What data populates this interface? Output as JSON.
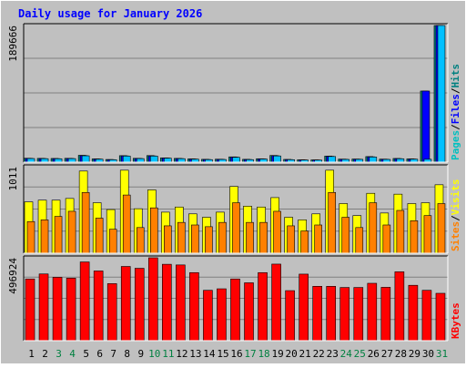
{
  "chart_data": {
    "type": "bar",
    "title": "Daily usage for January 2026",
    "categories": [
      "1",
      "2",
      "3",
      "4",
      "5",
      "6",
      "7",
      "8",
      "9",
      "10",
      "11",
      "12",
      "13",
      "14",
      "15",
      "16",
      "17",
      "18",
      "19",
      "20",
      "21",
      "22",
      "23",
      "24",
      "25",
      "26",
      "27",
      "28",
      "29",
      "30",
      "31"
    ],
    "weekend_days": [
      "3",
      "4",
      "10",
      "11",
      "17",
      "18",
      "24",
      "25",
      "31"
    ],
    "panels": [
      {
        "id": "top",
        "ylabel_max": "189666",
        "ymax": 189666,
        "side_labels": [
          {
            "text": "Pages",
            "color": "#00c0c0"
          },
          {
            "text": "/",
            "color": "#000000"
          },
          {
            "text": "Files",
            "color": "#0000ff"
          },
          {
            "text": "/",
            "color": "#000000"
          },
          {
            "text": "Hits",
            "color": "#008080"
          }
        ],
        "series": [
          {
            "name": "Hits",
            "color": "#008080",
            "values": [
              5400,
              5200,
              5100,
              5300,
              9500,
              4500,
              3700,
              9000,
              5300,
              9100,
              5900,
              5200,
              4500,
              3900,
              4100,
              7300,
              3900,
              4700,
              9300,
              3800,
              3200,
              3100,
              8400,
              4200,
              4300,
              7700,
              4200,
              5100,
              4500,
              98700,
              189666
            ]
          },
          {
            "name": "Files",
            "color": "#0000ff",
            "values": [
              5200,
              5000,
              4900,
              5100,
              9100,
              4300,
              3500,
              8700,
              5100,
              8700,
              5700,
              5000,
              4300,
              3700,
              3900,
              7000,
              3700,
              4500,
              8900,
              3600,
              3100,
              3000,
              8100,
              4000,
              4100,
              7400,
              4000,
              4900,
              4300,
              98700,
              189666
            ]
          },
          {
            "name": "Pages",
            "color": "#00c0ff",
            "values": [
              5000,
              4800,
              4700,
              4900,
              8800,
              4100,
              3300,
              8400,
              4900,
              8400,
              5500,
              4800,
              4100,
              3500,
              3700,
              6700,
              3500,
              4300,
              8600,
              3400,
              2900,
              2800,
              7800,
              3800,
              3900,
              7100,
              3800,
              4700,
              4100,
              4000,
              189666
            ]
          }
        ]
      },
      {
        "id": "middle",
        "ylabel_max": "1011",
        "ymax": 1011,
        "side_labels": [
          {
            "text": "Sites",
            "color": "#ff8000"
          },
          {
            "text": "/",
            "color": "#000000"
          },
          {
            "text": "Visits",
            "color": "#ffff00"
          }
        ],
        "series": [
          {
            "name": "Visits",
            "color": "#ffff00",
            "values": [
              600,
              620,
              620,
              640,
              960,
              590,
              510,
              970,
              520,
              740,
              480,
              540,
              460,
              420,
              480,
              780,
              550,
              540,
              650,
              420,
              390,
              460,
              970,
              580,
              440,
              700,
              470,
              690,
              580,
              590,
              800
            ]
          },
          {
            "name": "Sites",
            "color": "#ff8000",
            "values": [
              370,
              390,
              430,
              490,
              710,
              410,
              280,
              680,
              300,
              530,
              320,
              360,
              330,
              310,
              360,
              590,
              360,
              360,
              490,
              320,
              260,
              330,
              710,
              420,
              300,
              590,
              330,
              500,
              380,
              440,
              580
            ]
          }
        ]
      },
      {
        "id": "bottom",
        "ylabel_max": "496924",
        "ymax": 496924,
        "side_labels": [
          {
            "text": "KBytes",
            "color": "#ff0000"
          }
        ],
        "series": [
          {
            "name": "KBytes",
            "color": "#ff0000",
            "values": [
              370000,
              400000,
              380000,
              375000,
              472000,
              418000,
              342000,
              445000,
              434000,
              496924,
              458000,
              454000,
              408000,
              302000,
              311000,
              370000,
              347000,
              408000,
              459000,
              300000,
              399000,
              326000,
              326000,
              319000,
              319000,
              344000,
              320000,
              413000,
              332000,
              302000,
              284000
            ]
          }
        ]
      }
    ]
  }
}
